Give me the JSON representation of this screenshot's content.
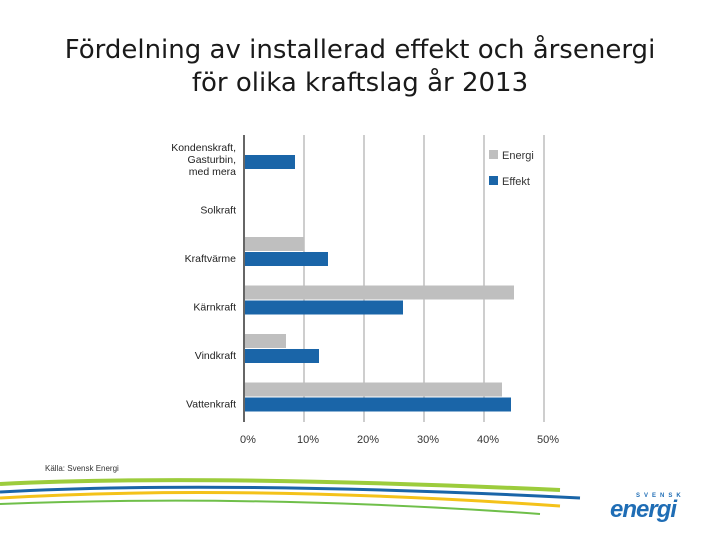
{
  "title_line1": "Fördelning av installerad effekt och årsenergi",
  "title_line2": "för olika kraftslag år 2013",
  "source": "Källa: Svensk Energi",
  "logo": {
    "top": "SVENSK",
    "main": "energi"
  },
  "colors": {
    "energi": "#bfbfbf",
    "effekt": "#1a65a8",
    "grid": "#bdbdbd",
    "axis": "#333333"
  },
  "chart_data": {
    "type": "bar",
    "orientation": "horizontal",
    "categories": [
      [
        "Kondenskraft,",
        "Gasturbin,",
        "med mera"
      ],
      [
        "Solkraft"
      ],
      [
        "Kraftvärme"
      ],
      [
        "Kärnkraft"
      ],
      [
        "Vindkraft"
      ],
      [
        "Vattenkraft"
      ]
    ],
    "series": [
      {
        "name": "Energi",
        "values": [
          0,
          0,
          10,
          45,
          7,
          43
        ]
      },
      {
        "name": "Effekt",
        "values": [
          8.5,
          0,
          14,
          26.5,
          12.5,
          44.5
        ]
      }
    ],
    "xticks": [
      "0%",
      "10%",
      "20%",
      "30%",
      "40%",
      "50%"
    ],
    "xlim": [
      0,
      50
    ],
    "legend": "top-right",
    "grid": true
  }
}
